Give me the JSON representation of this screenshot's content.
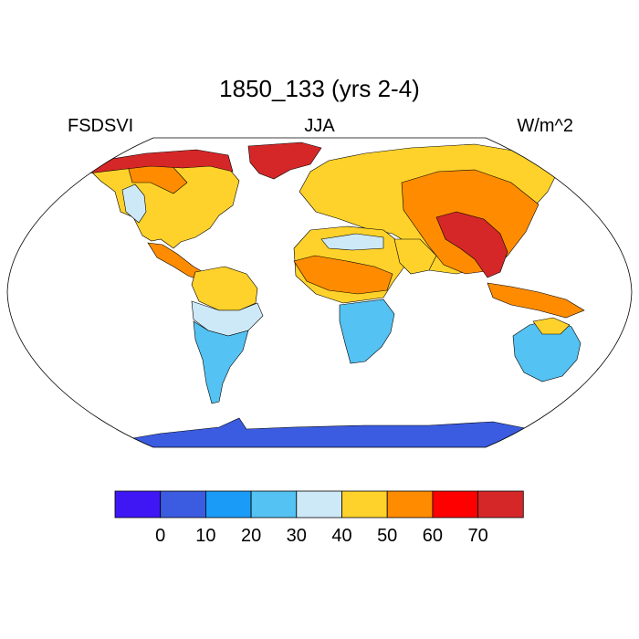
{
  "title": "1850_133 (yrs 2-4)",
  "left_string": "FSDSVI",
  "center_string": "JJA",
  "right_string": "W/m^2",
  "colorbar": {
    "colors": [
      "#3f17f5",
      "#3b5ce0",
      "#1a9bf7",
      "#54c2f2",
      "#cde9f8",
      "#fed22b",
      "#ff8c00",
      "#ff0000",
      "#d62728"
    ],
    "labels": [
      "0",
      "10",
      "20",
      "30",
      "40",
      "50",
      "60",
      "70"
    ]
  },
  "map": {
    "projection": "robinson",
    "ocean_color": "#ffffff",
    "regions": [
      {
        "name": "greenland",
        "color": "#d62728"
      },
      {
        "name": "canada-arctic",
        "color": "#d62728"
      },
      {
        "name": "north-america",
        "color": "#fed22b"
      },
      {
        "name": "north-america-lightband",
        "color": "#cde9f8"
      },
      {
        "name": "north-america-orange",
        "color": "#ff8c00"
      },
      {
        "name": "central-america",
        "color": "#ff8c00"
      },
      {
        "name": "south-america-north",
        "color": "#fed22b"
      },
      {
        "name": "south-america-mid",
        "color": "#cde9f8"
      },
      {
        "name": "south-america-south",
        "color": "#54c2f2"
      },
      {
        "name": "eurasia",
        "color": "#fed22b"
      },
      {
        "name": "asia-orange",
        "color": "#ff8c00"
      },
      {
        "name": "himalaya-red",
        "color": "#d62728"
      },
      {
        "name": "africa-north",
        "color": "#fed22b"
      },
      {
        "name": "sahara-light",
        "color": "#cde9f8"
      },
      {
        "name": "africa-orange",
        "color": "#ff8c00"
      },
      {
        "name": "africa-south",
        "color": "#54c2f2"
      },
      {
        "name": "arabia",
        "color": "#fed22b"
      },
      {
        "name": "indonesia",
        "color": "#ff8c00"
      },
      {
        "name": "australia",
        "color": "#54c2f2"
      },
      {
        "name": "australia-north",
        "color": "#fed22b"
      },
      {
        "name": "antarctica",
        "color": "#3b5ce0"
      }
    ]
  }
}
